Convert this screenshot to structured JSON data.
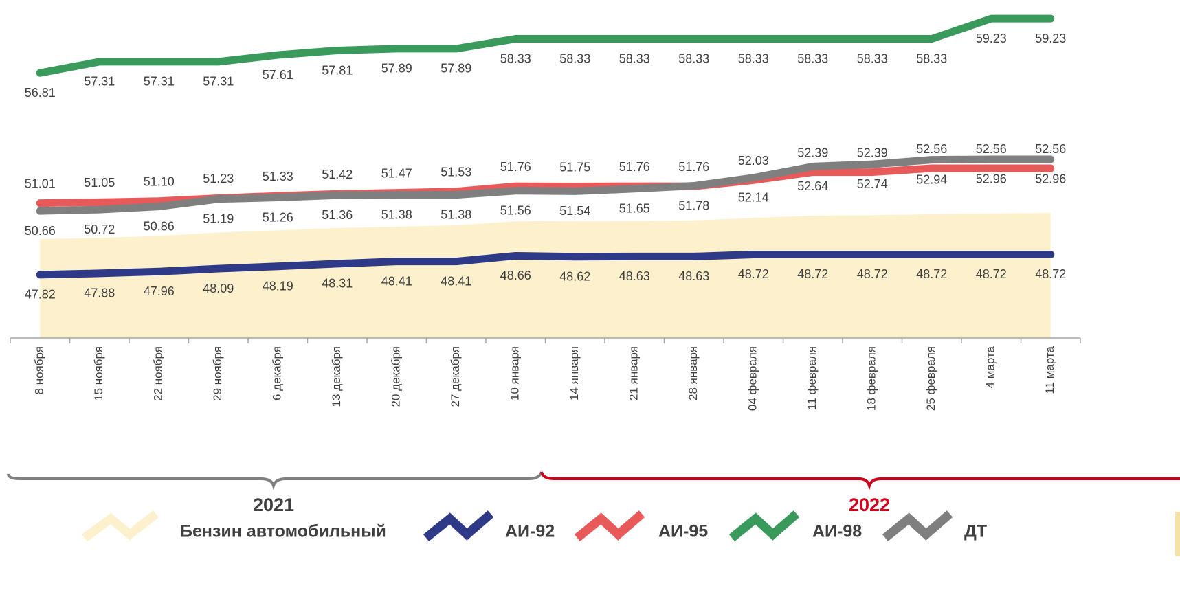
{
  "chart_data": {
    "type": "line",
    "categories": [
      "8 ноября",
      "15 ноября",
      "22 ноября",
      "29 ноября",
      "6 декабря",
      "13 декабря",
      "20 декабря",
      "27 декабря",
      "10 января",
      "14 января",
      "21 января",
      "28 января",
      "04 февраля",
      "11 февраля",
      "18 февраля",
      "25 февраля",
      "4 марта",
      "11 марта"
    ],
    "ylim": [
      45,
      60
    ],
    "periods": [
      "2021",
      "2022"
    ],
    "series": [
      {
        "name": "Бензин автомобильный",
        "type": "area",
        "color": "#fdf0cc",
        "values": [
          49.41,
          49.46,
          49.55,
          49.7,
          49.8,
          49.9,
          49.96,
          50.02,
          50.2,
          50.21,
          50.22,
          50.24,
          50.35,
          50.45,
          50.47,
          50.51,
          50.54,
          50.57
        ]
      },
      {
        "name": "АИ-92",
        "color": "#2e3a87",
        "label_position": "below",
        "values": [
          47.82,
          47.88,
          47.96,
          48.09,
          48.19,
          48.31,
          48.41,
          48.41,
          48.66,
          48.62,
          48.63,
          48.63,
          48.72,
          48.72,
          48.72,
          48.72,
          48.72,
          48.72
        ]
      },
      {
        "name": "АИ-95",
        "color": "#e85a5a",
        "label_position": "above",
        "values": [
          51.01,
          51.05,
          51.1,
          51.23,
          51.33,
          51.42,
          51.47,
          51.53,
          51.76,
          51.75,
          51.76,
          51.76,
          52.03,
          52.39,
          52.39,
          52.56,
          52.56,
          52.56
        ],
        "value_labels": [
          "51.01",
          "51.05",
          "51.10",
          "51.23",
          "51.33",
          "51.42",
          "51.47",
          "51.53",
          "51.76",
          "51.75",
          "51.76",
          "51.76",
          "52.03",
          "52.39",
          "52.39",
          "52.56",
          "52.56",
          "52.56"
        ]
      },
      {
        "name": "АИ-98",
        "color": "#3a9a5c",
        "label_position": "below",
        "values": [
          56.81,
          57.31,
          57.31,
          57.31,
          57.61,
          57.81,
          57.89,
          57.89,
          58.33,
          58.33,
          58.33,
          58.33,
          58.33,
          58.33,
          58.33,
          58.33,
          59.23,
          59.23
        ]
      },
      {
        "name": "ДТ",
        "color": "#7f7f7f",
        "label_position": "below",
        "values": [
          50.66,
          50.72,
          50.86,
          51.19,
          51.26,
          51.36,
          51.38,
          51.38,
          51.56,
          51.54,
          51.65,
          51.78,
          52.14,
          52.64,
          52.74,
          52.94,
          52.96,
          52.96
        ]
      }
    ]
  }
}
